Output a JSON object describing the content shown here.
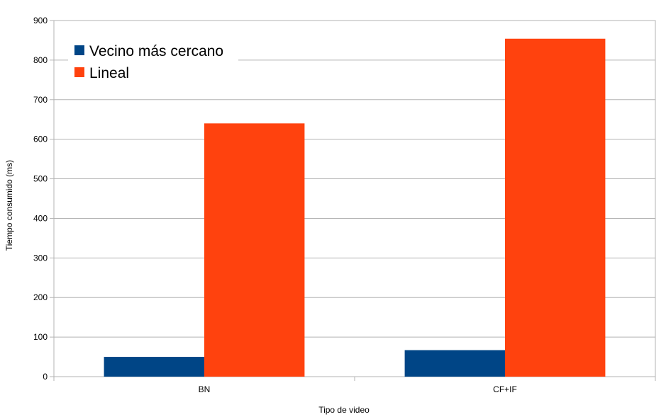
{
  "chart_data": {
    "type": "bar",
    "categories": [
      "BN",
      "CF+IF"
    ],
    "series": [
      {
        "name": "Vecino más cercano",
        "values": [
          50,
          67
        ],
        "color": "#004586"
      },
      {
        "name": "Lineal",
        "values": [
          640,
          854
        ],
        "color": "#ff420e"
      }
    ],
    "xlabel": "Tipo de video",
    "ylabel": "Tiempo consumido (ms)",
    "ylim": [
      0,
      900
    ],
    "yticks": [
      0,
      100,
      200,
      300,
      400,
      500,
      600,
      700,
      800,
      900
    ],
    "grid": true,
    "legend_position": "top-left"
  }
}
